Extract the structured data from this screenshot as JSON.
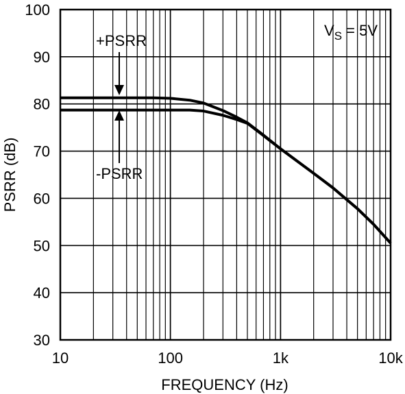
{
  "chart_data": {
    "type": "line",
    "title": "",
    "xlabel": "FREQUENCY (Hz)",
    "ylabel": "PSRR (dB)",
    "xscale": "log",
    "xlim": [
      10,
      10000
    ],
    "ylim": [
      30,
      100
    ],
    "x_ticks": [
      10,
      100,
      1000,
      10000
    ],
    "x_tick_labels": [
      "10",
      "100",
      "1k",
      "10k"
    ],
    "y_ticks": [
      30,
      40,
      50,
      60,
      70,
      80,
      90,
      100
    ],
    "y_tick_labels": [
      "30",
      "40",
      "50",
      "60",
      "70",
      "80",
      "90",
      "100"
    ],
    "grid": true,
    "annotation_condition": {
      "prefix": "V",
      "subscript": "S",
      "suffix": " = 5V"
    },
    "series": [
      {
        "name": "+PSRR",
        "x": [
          10,
          30,
          70,
          100,
          150,
          200,
          300,
          400,
          500,
          700,
          1000,
          2000,
          3000,
          5000,
          7000,
          10000
        ],
        "y": [
          81.3,
          81.3,
          81.3,
          81.2,
          80.8,
          80.2,
          78.6,
          77.2,
          76.0,
          73.4,
          70.5,
          65.3,
          62.2,
          57.8,
          54.5,
          50.5
        ]
      },
      {
        "name": "-PSRR",
        "x": [
          10,
          30,
          70,
          100,
          150,
          200,
          300,
          400,
          500,
          700,
          1000,
          2000,
          3000,
          5000,
          7000,
          10000
        ],
        "y": [
          78.7,
          78.7,
          78.7,
          78.7,
          78.7,
          78.5,
          77.6,
          76.7,
          75.9,
          73.3,
          70.5,
          65.3,
          62.2,
          57.8,
          54.5,
          50.5
        ]
      }
    ]
  }
}
